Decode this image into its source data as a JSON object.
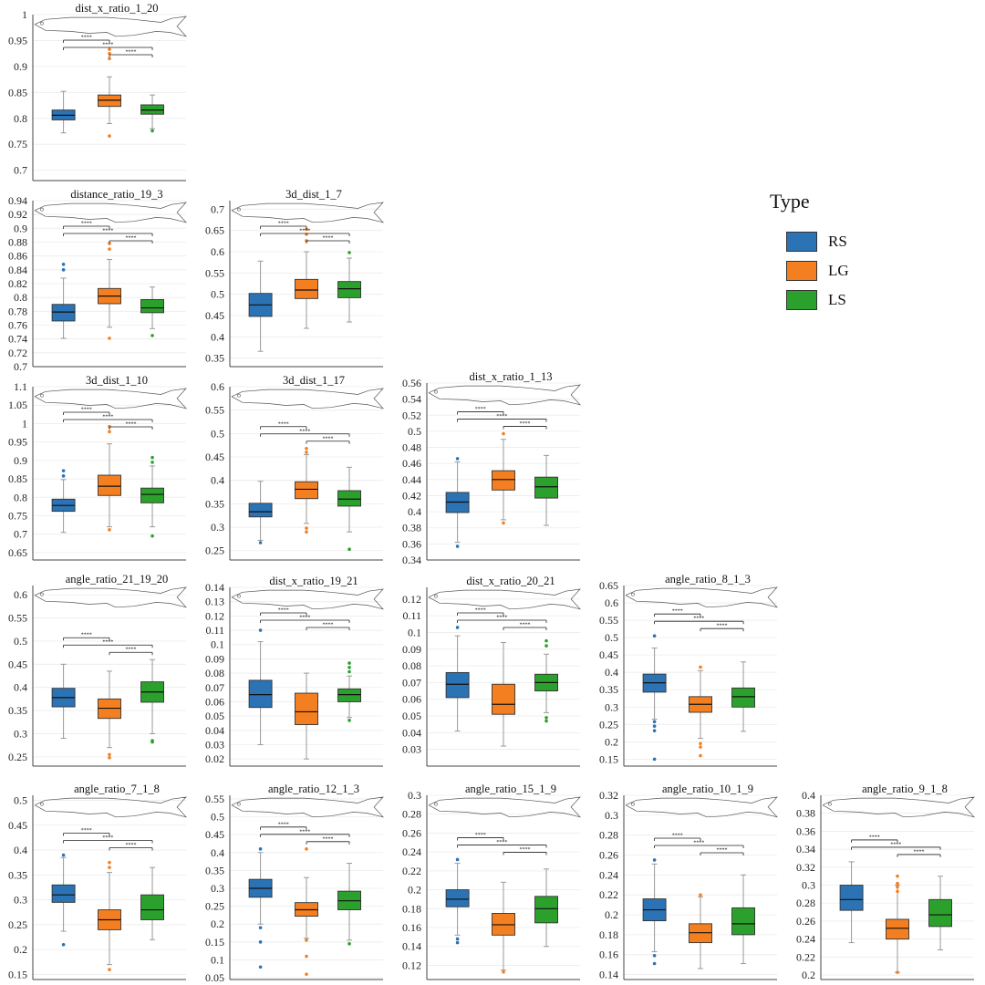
{
  "legend": {
    "title": "Type",
    "items": [
      {
        "label": "RS",
        "color": "#2b73b5"
      },
      {
        "label": "LG",
        "color": "#f47f20"
      },
      {
        "label": "LS",
        "color": "#2ca02c"
      }
    ]
  },
  "significance_label": "****",
  "chart_data": [
    {
      "type": "box",
      "title": "dist_x_ratio_1_20",
      "ylim": [
        0.68,
        1.0
      ],
      "yticks": [
        1,
        0.95,
        0.9,
        0.85,
        0.8,
        0.75,
        0.7
      ],
      "ytick_labels": [
        "1",
        "0.95",
        "0.9",
        "0.85",
        "0.8",
        "0.75",
        "0.7"
      ],
      "categories": [
        "RS",
        "LG",
        "LS"
      ],
      "boxes": [
        {
          "q1": 0.797,
          "median": 0.806,
          "q3": 0.816,
          "lw": 0.772,
          "uw": 0.852,
          "outliers": []
        },
        {
          "q1": 0.823,
          "median": 0.835,
          "q3": 0.845,
          "lw": 0.79,
          "uw": 0.88,
          "outliers": [
            0.933,
            0.925,
            0.915,
            0.766
          ]
        },
        {
          "q1": 0.808,
          "median": 0.816,
          "q3": 0.826,
          "lw": 0.78,
          "uw": 0.845,
          "outliers": [
            0.776
          ]
        }
      ]
    },
    {
      "type": "box",
      "title": "distance_ratio_19_3",
      "ylim": [
        0.7,
        0.94
      ],
      "yticks": [
        0.94,
        0.92,
        0.9,
        0.88,
        0.86,
        0.84,
        0.82,
        0.8,
        0.78,
        0.76,
        0.74,
        0.72,
        0.7
      ],
      "ytick_labels": [
        "0.94",
        "0.92",
        "0.9",
        "0.88",
        "0.86",
        "0.84",
        "0.82",
        "0.8",
        "0.78",
        "0.76",
        "0.74",
        "0.72",
        "0.7"
      ],
      "categories": [
        "RS",
        "LG",
        "LS"
      ],
      "boxes": [
        {
          "q1": 0.766,
          "median": 0.779,
          "q3": 0.79,
          "lw": 0.741,
          "uw": 0.828,
          "outliers": [
            0.848,
            0.84
          ]
        },
        {
          "q1": 0.791,
          "median": 0.802,
          "q3": 0.813,
          "lw": 0.757,
          "uw": 0.855,
          "outliers": [
            0.878,
            0.87,
            0.741
          ]
        },
        {
          "q1": 0.778,
          "median": 0.785,
          "q3": 0.797,
          "lw": 0.755,
          "uw": 0.815,
          "outliers": [
            0.745
          ]
        }
      ]
    },
    {
      "type": "box",
      "title": "3d_dist_1_7",
      "ylim": [
        0.33,
        0.72
      ],
      "yticks": [
        0.7,
        0.65,
        0.6,
        0.55,
        0.5,
        0.45,
        0.4,
        0.35
      ],
      "ytick_labels": [
        "0.7",
        "0.65",
        "0.6",
        "0.55",
        "0.5",
        "0.45",
        "0.4",
        "0.35"
      ],
      "categories": [
        "RS",
        "LG",
        "LS"
      ],
      "boxes": [
        {
          "q1": 0.448,
          "median": 0.475,
          "q3": 0.502,
          "lw": 0.366,
          "uw": 0.578,
          "outliers": []
        },
        {
          "q1": 0.49,
          "median": 0.51,
          "q3": 0.535,
          "lw": 0.42,
          "uw": 0.6,
          "outliers": [
            0.653,
            0.641,
            0.626
          ]
        },
        {
          "q1": 0.492,
          "median": 0.513,
          "q3": 0.53,
          "lw": 0.435,
          "uw": 0.585,
          "outliers": [
            0.598
          ]
        }
      ]
    },
    {
      "type": "box",
      "title": "3d_dist_1_10",
      "ylim": [
        0.63,
        1.1
      ],
      "yticks": [
        1.1,
        1.05,
        1,
        0.95,
        0.9,
        0.85,
        0.8,
        0.75,
        0.7,
        0.65
      ],
      "ytick_labels": [
        "1.1",
        "1.05",
        "1",
        "0.95",
        "0.9",
        "0.85",
        "0.8",
        "0.75",
        "0.7",
        "0.65"
      ],
      "categories": [
        "RS",
        "LG",
        "LS"
      ],
      "boxes": [
        {
          "q1": 0.762,
          "median": 0.778,
          "q3": 0.795,
          "lw": 0.705,
          "uw": 0.848,
          "outliers": [
            0.872,
            0.858
          ]
        },
        {
          "q1": 0.805,
          "median": 0.83,
          "q3": 0.86,
          "lw": 0.72,
          "uw": 0.945,
          "outliers": [
            0.992,
            0.978,
            0.712
          ]
        },
        {
          "q1": 0.785,
          "median": 0.808,
          "q3": 0.825,
          "lw": 0.72,
          "uw": 0.885,
          "outliers": [
            0.908,
            0.895,
            0.695
          ]
        }
      ]
    },
    {
      "type": "box",
      "title": "3d_dist_1_17",
      "ylim": [
        0.23,
        0.6
      ],
      "yticks": [
        0.6,
        0.55,
        0.5,
        0.45,
        0.4,
        0.35,
        0.3,
        0.25
      ],
      "ytick_labels": [
        "0.6",
        "0.55",
        "0.5",
        "0.45",
        "0.4",
        "0.35",
        "0.3",
        "0.25"
      ],
      "categories": [
        "RS",
        "LG",
        "LS"
      ],
      "boxes": [
        {
          "q1": 0.322,
          "median": 0.333,
          "q3": 0.351,
          "lw": 0.272,
          "uw": 0.398,
          "outliers": [
            0.267
          ]
        },
        {
          "q1": 0.361,
          "median": 0.381,
          "q3": 0.397,
          "lw": 0.308,
          "uw": 0.455,
          "outliers": [
            0.468,
            0.46,
            0.298,
            0.29
          ]
        },
        {
          "q1": 0.345,
          "median": 0.36,
          "q3": 0.378,
          "lw": 0.29,
          "uw": 0.428,
          "outliers": [
            0.253
          ]
        }
      ]
    },
    {
      "type": "box",
      "title": "dist_x_ratio_1_13",
      "ylim": [
        0.34,
        0.56
      ],
      "yticks": [
        0.56,
        0.54,
        0.52,
        0.5,
        0.48,
        0.46,
        0.44,
        0.42,
        0.4,
        0.38,
        0.36,
        0.34
      ],
      "ytick_labels": [
        "0.56",
        "0.54",
        "0.52",
        "0.5",
        "0.48",
        "0.46",
        "0.44",
        "0.42",
        "0.4",
        "0.38",
        "0.36",
        "0.34"
      ],
      "categories": [
        "RS",
        "LG",
        "LS"
      ],
      "boxes": [
        {
          "q1": 0.399,
          "median": 0.412,
          "q3": 0.424,
          "lw": 0.362,
          "uw": 0.462,
          "outliers": [
            0.466,
            0.357
          ]
        },
        {
          "q1": 0.427,
          "median": 0.44,
          "q3": 0.451,
          "lw": 0.39,
          "uw": 0.49,
          "outliers": [
            0.497,
            0.386
          ]
        },
        {
          "q1": 0.417,
          "median": 0.431,
          "q3": 0.443,
          "lw": 0.383,
          "uw": 0.47,
          "outliers": []
        }
      ]
    },
    {
      "type": "box",
      "title": "angle_ratio_21_19_20",
      "ylim": [
        0.23,
        0.62
      ],
      "yticks": [
        0.6,
        0.55,
        0.5,
        0.45,
        0.4,
        0.35,
        0.3,
        0.25
      ],
      "ytick_labels": [
        "0.6",
        "0.55",
        "0.5",
        "0.45",
        "0.4",
        "0.35",
        "0.3",
        "0.25"
      ],
      "categories": [
        "RS",
        "LG",
        "LS"
      ],
      "boxes": [
        {
          "q1": 0.358,
          "median": 0.378,
          "q3": 0.398,
          "lw": 0.29,
          "uw": 0.45,
          "outliers": []
        },
        {
          "q1": 0.333,
          "median": 0.355,
          "q3": 0.375,
          "lw": 0.27,
          "uw": 0.435,
          "outliers": [
            0.255,
            0.248
          ]
        },
        {
          "q1": 0.368,
          "median": 0.39,
          "q3": 0.412,
          "lw": 0.3,
          "uw": 0.46,
          "outliers": [
            0.285,
            0.282
          ]
        }
      ]
    },
    {
      "type": "box",
      "title": "dist_x_ratio_19_21",
      "ylim": [
        0.015,
        0.14
      ],
      "yticks": [
        0.14,
        0.13,
        0.12,
        0.11,
        0.1,
        0.09,
        0.08,
        0.07,
        0.06,
        0.05,
        0.04,
        0.03,
        0.02
      ],
      "ytick_labels": [
        "0.14",
        "0.13",
        "0.12",
        "0.11",
        "0.1",
        "0.09",
        "0.08",
        "0.07",
        "0.06",
        "0.05",
        "0.04",
        "0.03",
        "0.02"
      ],
      "categories": [
        "RS",
        "LG",
        "LS"
      ],
      "boxes": [
        {
          "q1": 0.056,
          "median": 0.065,
          "q3": 0.075,
          "lw": 0.03,
          "uw": 0.102,
          "outliers": [
            0.11
          ]
        },
        {
          "q1": 0.044,
          "median": 0.053,
          "q3": 0.066,
          "lw": 0.02,
          "uw": 0.08,
          "outliers": []
        },
        {
          "q1": 0.06,
          "median": 0.065,
          "q3": 0.069,
          "lw": 0.049,
          "uw": 0.078,
          "outliers": [
            0.087,
            0.084,
            0.081,
            0.047
          ]
        }
      ]
    },
    {
      "type": "box",
      "title": "dist_x_ratio_20_21",
      "ylim": [
        0.02,
        0.127
      ],
      "yticks": [
        0.12,
        0.11,
        0.1,
        0.09,
        0.08,
        0.07,
        0.06,
        0.05,
        0.04,
        0.03
      ],
      "ytick_labels": [
        "0.12",
        "0.11",
        "0.1",
        "0.09",
        "0.08",
        "0.07",
        "0.06",
        "0.05",
        "0.04",
        "0.03"
      ],
      "categories": [
        "RS",
        "LG",
        "LS"
      ],
      "boxes": [
        {
          "q1": 0.061,
          "median": 0.069,
          "q3": 0.076,
          "lw": 0.041,
          "uw": 0.098,
          "outliers": [
            0.103
          ]
        },
        {
          "q1": 0.051,
          "median": 0.057,
          "q3": 0.069,
          "lw": 0.032,
          "uw": 0.094,
          "outliers": []
        },
        {
          "q1": 0.065,
          "median": 0.07,
          "q3": 0.075,
          "lw": 0.052,
          "uw": 0.087,
          "outliers": [
            0.095,
            0.092,
            0.049,
            0.047
          ]
        }
      ]
    },
    {
      "type": "box",
      "title": "angle_ratio_8_1_3",
      "ylim": [
        0.13,
        0.65
      ],
      "yticks": [
        0.65,
        0.6,
        0.55,
        0.5,
        0.45,
        0.4,
        0.35,
        0.3,
        0.25,
        0.2,
        0.15
      ],
      "ytick_labels": [
        "0.65",
        "0.6",
        "0.55",
        "0.5",
        "0.45",
        "0.4",
        "0.35",
        "0.3",
        "0.25",
        "0.2",
        "0.15"
      ],
      "categories": [
        "RS",
        "LG",
        "LS"
      ],
      "boxes": [
        {
          "q1": 0.343,
          "median": 0.37,
          "q3": 0.395,
          "lw": 0.265,
          "uw": 0.47,
          "outliers": [
            0.505,
            0.258,
            0.245,
            0.232,
            0.15
          ]
        },
        {
          "q1": 0.285,
          "median": 0.308,
          "q3": 0.33,
          "lw": 0.21,
          "uw": 0.405,
          "outliers": [
            0.415,
            0.195,
            0.185,
            0.16
          ]
        },
        {
          "q1": 0.3,
          "median": 0.33,
          "q3": 0.355,
          "lw": 0.23,
          "uw": 0.43,
          "outliers": []
        }
      ]
    },
    {
      "type": "box",
      "title": "angle_ratio_7_1_8",
      "ylim": [
        0.14,
        0.51
      ],
      "yticks": [
        0.5,
        0.45,
        0.4,
        0.35,
        0.3,
        0.25,
        0.2,
        0.15
      ],
      "ytick_labels": [
        "0.5",
        "0.45",
        "0.4",
        "0.35",
        "0.3",
        "0.25",
        "0.2",
        "0.15"
      ],
      "categories": [
        "RS",
        "LG",
        "LS"
      ],
      "boxes": [
        {
          "q1": 0.295,
          "median": 0.31,
          "q3": 0.33,
          "lw": 0.237,
          "uw": 0.385,
          "outliers": [
            0.39,
            0.21
          ]
        },
        {
          "q1": 0.24,
          "median": 0.26,
          "q3": 0.28,
          "lw": 0.17,
          "uw": 0.355,
          "outliers": [
            0.375,
            0.365,
            0.16
          ]
        },
        {
          "q1": 0.26,
          "median": 0.28,
          "q3": 0.31,
          "lw": 0.22,
          "uw": 0.365,
          "outliers": []
        }
      ]
    },
    {
      "type": "box",
      "title": "angle_ratio_12_1_3",
      "ylim": [
        0.045,
        0.56
      ],
      "yticks": [
        0.55,
        0.5,
        0.45,
        0.4,
        0.35,
        0.3,
        0.25,
        0.2,
        0.15,
        0.1,
        0.05
      ],
      "ytick_labels": [
        "0.55",
        "0.5",
        "0.45",
        "0.4",
        "0.35",
        "0.3",
        "0.25",
        "0.2",
        "0.15",
        "0.1",
        "0.05"
      ],
      "categories": [
        "RS",
        "LG",
        "LS"
      ],
      "boxes": [
        {
          "q1": 0.275,
          "median": 0.3,
          "q3": 0.325,
          "lw": 0.2,
          "uw": 0.4,
          "outliers": [
            0.41,
            0.19,
            0.15,
            0.08
          ]
        },
        {
          "q1": 0.222,
          "median": 0.24,
          "q3": 0.26,
          "lw": 0.16,
          "uw": 0.33,
          "outliers": [
            0.41,
            0.155,
            0.11,
            0.06
          ]
        },
        {
          "q1": 0.24,
          "median": 0.265,
          "q3": 0.292,
          "lw": 0.155,
          "uw": 0.37,
          "outliers": [
            0.145
          ]
        }
      ]
    },
    {
      "type": "box",
      "title": "angle_ratio_15_1_9",
      "ylim": [
        0.105,
        0.3
      ],
      "yticks": [
        0.3,
        0.28,
        0.26,
        0.24,
        0.22,
        0.2,
        0.18,
        0.16,
        0.14,
        0.12
      ],
      "ytick_labels": [
        "0.3",
        "0.28",
        "0.26",
        "0.24",
        "0.22",
        "0.2",
        "0.18",
        "0.16",
        "0.14",
        "0.12"
      ],
      "categories": [
        "RS",
        "LG",
        "LS"
      ],
      "boxes": [
        {
          "q1": 0.182,
          "median": 0.19,
          "q3": 0.2,
          "lw": 0.152,
          "uw": 0.228,
          "outliers": [
            0.232,
            0.148,
            0.144
          ]
        },
        {
          "q1": 0.152,
          "median": 0.163,
          "q3": 0.175,
          "lw": 0.115,
          "uw": 0.208,
          "outliers": [
            0.113
          ]
        },
        {
          "q1": 0.165,
          "median": 0.18,
          "q3": 0.193,
          "lw": 0.14,
          "uw": 0.222,
          "outliers": []
        }
      ]
    },
    {
      "type": "box",
      "title": "angle_ratio_10_1_9",
      "ylim": [
        0.135,
        0.32
      ],
      "yticks": [
        0.32,
        0.3,
        0.28,
        0.26,
        0.24,
        0.22,
        0.2,
        0.18,
        0.16,
        0.14
      ],
      "ytick_labels": [
        "0.32",
        "0.3",
        "0.28",
        "0.26",
        "0.24",
        "0.22",
        "0.2",
        "0.18",
        "0.16",
        "0.14"
      ],
      "categories": [
        "RS",
        "LG",
        "LS"
      ],
      "boxes": [
        {
          "q1": 0.194,
          "median": 0.205,
          "q3": 0.216,
          "lw": 0.163,
          "uw": 0.251,
          "outliers": [
            0.255,
            0.159,
            0.151
          ]
        },
        {
          "q1": 0.172,
          "median": 0.182,
          "q3": 0.191,
          "lw": 0.146,
          "uw": 0.218,
          "outliers": [
            0.22
          ]
        },
        {
          "q1": 0.18,
          "median": 0.191,
          "q3": 0.207,
          "lw": 0.151,
          "uw": 0.24,
          "outliers": []
        }
      ]
    },
    {
      "type": "box",
      "title": "angle_ratio_9_1_8",
      "ylim": [
        0.195,
        0.4
      ],
      "yticks": [
        0.4,
        0.38,
        0.36,
        0.34,
        0.32,
        0.3,
        0.28,
        0.26,
        0.24,
        0.22,
        0.2
      ],
      "ytick_labels": [
        "0.4",
        "0.38",
        "0.36",
        "0.34",
        "0.32",
        "0.3",
        "0.28",
        "0.26",
        "0.24",
        "0.22",
        "0.2"
      ],
      "categories": [
        "RS",
        "LG",
        "LS"
      ],
      "boxes": [
        {
          "q1": 0.272,
          "median": 0.284,
          "q3": 0.3,
          "lw": 0.236,
          "uw": 0.326,
          "outliers": []
        },
        {
          "q1": 0.24,
          "median": 0.252,
          "q3": 0.262,
          "lw": 0.203,
          "uw": 0.3,
          "outliers": [
            0.31,
            0.302,
            0.298,
            0.293,
            0.203
          ]
        },
        {
          "q1": 0.254,
          "median": 0.267,
          "q3": 0.284,
          "lw": 0.228,
          "uw": 0.31,
          "outliers": []
        }
      ]
    }
  ]
}
